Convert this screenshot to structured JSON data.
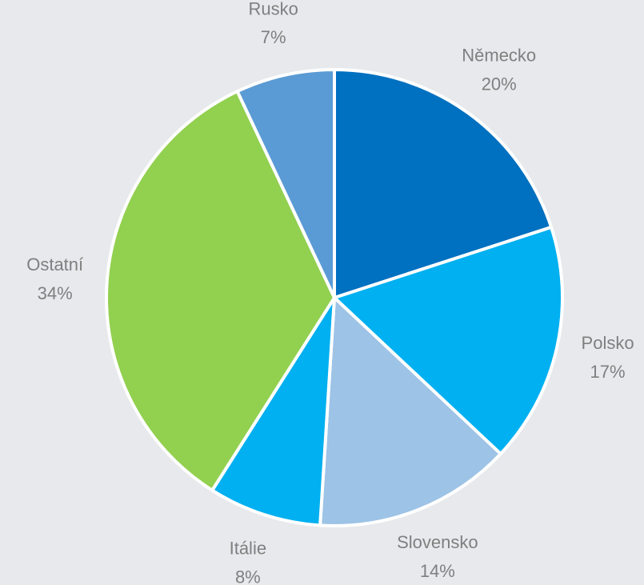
{
  "chart_data": {
    "type": "pie",
    "categories": [
      "Německo",
      "Polsko",
      "Slovensko",
      "Itálie",
      "Ostatní",
      "Rusko"
    ],
    "values": [
      20,
      17,
      14,
      8,
      34,
      7
    ],
    "value_labels": [
      "20%",
      "17%",
      "14%",
      "8%",
      "34%",
      "7%"
    ],
    "colors": [
      "#0070c0",
      "#00b0f0",
      "#9dc3e6",
      "#00b0f0",
      "#92d050",
      "#5b9bd5"
    ]
  }
}
